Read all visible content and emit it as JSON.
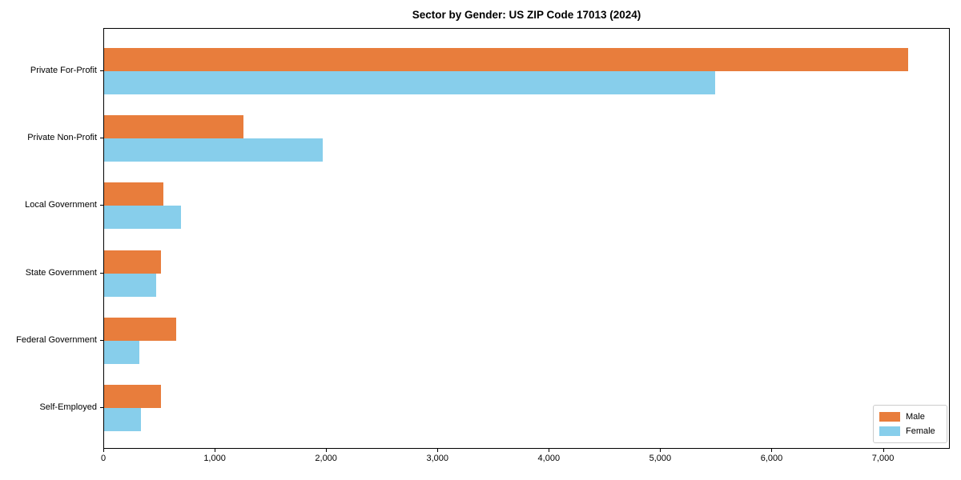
{
  "chart_data": {
    "type": "bar",
    "orientation": "horizontal",
    "title": "Sector by Gender: US ZIP Code 17013 (2024)",
    "categories": [
      "Private For-Profit",
      "Private Non-Profit",
      "Local Government",
      "State Government",
      "Federal Government",
      "Self-Employed"
    ],
    "series": [
      {
        "name": "Male",
        "color": "#e87d3c",
        "values": [
          7230,
          1250,
          535,
          515,
          645,
          515
        ]
      },
      {
        "name": "Female",
        "color": "#87ceeb",
        "values": [
          5500,
          1970,
          695,
          465,
          315,
          330
        ]
      }
    ],
    "xlabel": "",
    "ylabel": "",
    "xlim": [
      0,
      7600
    ],
    "xtick_values": [
      0,
      1000,
      2000,
      3000,
      4000,
      5000,
      6000,
      7000
    ],
    "xtick_labels": [
      "0",
      "1,000",
      "2,000",
      "3,000",
      "4,000",
      "5,000",
      "6,000",
      "7,000"
    ],
    "grid": false,
    "legend_position": "lower right",
    "legend_entries": [
      "Male",
      "Female"
    ]
  }
}
